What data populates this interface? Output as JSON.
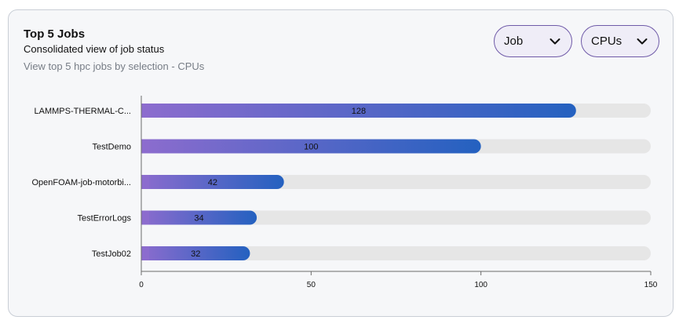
{
  "header": {
    "title": "Top 5 Jobs",
    "subtitle": "Consolidated view of job status",
    "description": "View top 5 hpc jobs by selection - CPUs"
  },
  "controls": {
    "group_by": {
      "selected": "Job",
      "icon": "chevron-down-icon"
    },
    "metric": {
      "selected": "CPUs",
      "icon": "chevron-down-icon"
    }
  },
  "colors": {
    "bar_gradient_start": "#8c6cce",
    "bar_gradient_end": "#2461c0",
    "track": "#e6e6e6",
    "axis": "#6b6b6b",
    "border": "#6f5aa8"
  },
  "chart_data": {
    "type": "bar",
    "orientation": "horizontal",
    "categories": [
      "LAMMPS-THERMAL-C...",
      "TestDemo",
      "OpenFOAM-job-motorbi...",
      "TestErrorLogs",
      "TestJob02"
    ],
    "values": [
      128,
      100,
      42,
      34,
      32
    ],
    "xlim": [
      0,
      150
    ],
    "xticks": [
      0,
      50,
      100,
      150
    ],
    "xlabel": "",
    "ylabel": "",
    "grid": false,
    "legend": "none"
  }
}
